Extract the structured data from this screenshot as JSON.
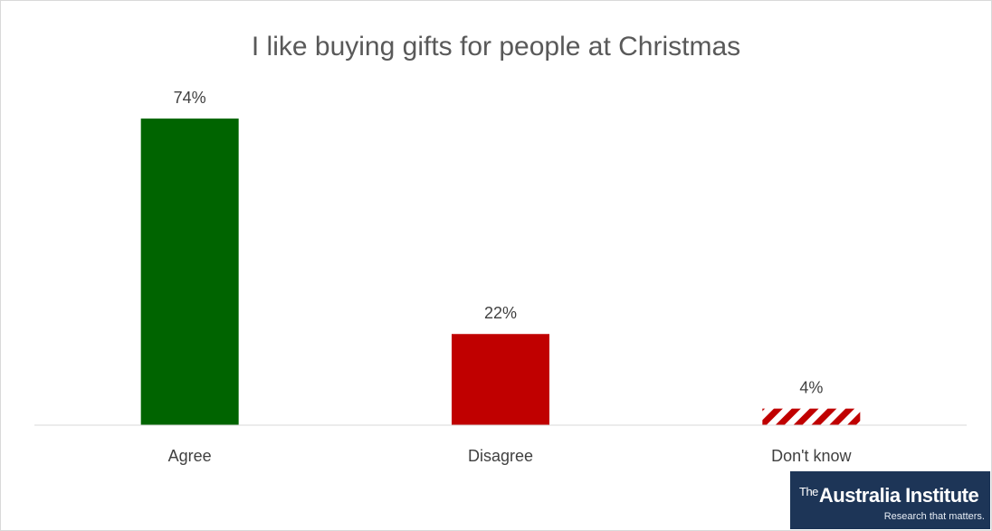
{
  "chart_data": {
    "type": "bar",
    "title": "I like buying gifts for people at Christmas",
    "categories": [
      "Agree",
      "Disagree",
      "Don't know"
    ],
    "values": [
      74,
      22,
      4
    ],
    "value_labels": [
      "74%",
      "22%",
      "4%"
    ],
    "unit": "%",
    "colors": [
      "#006400",
      "#c00000",
      "#c00000"
    ],
    "patterns": [
      "solid",
      "solid",
      "diagonal-stripes"
    ],
    "ylim": [
      0,
      80
    ],
    "grid": false,
    "legend": "none"
  },
  "logo": {
    "prefix": "The",
    "name": "Australia Institute",
    "tagline": "Research that matters.",
    "color": "#1d3557"
  }
}
